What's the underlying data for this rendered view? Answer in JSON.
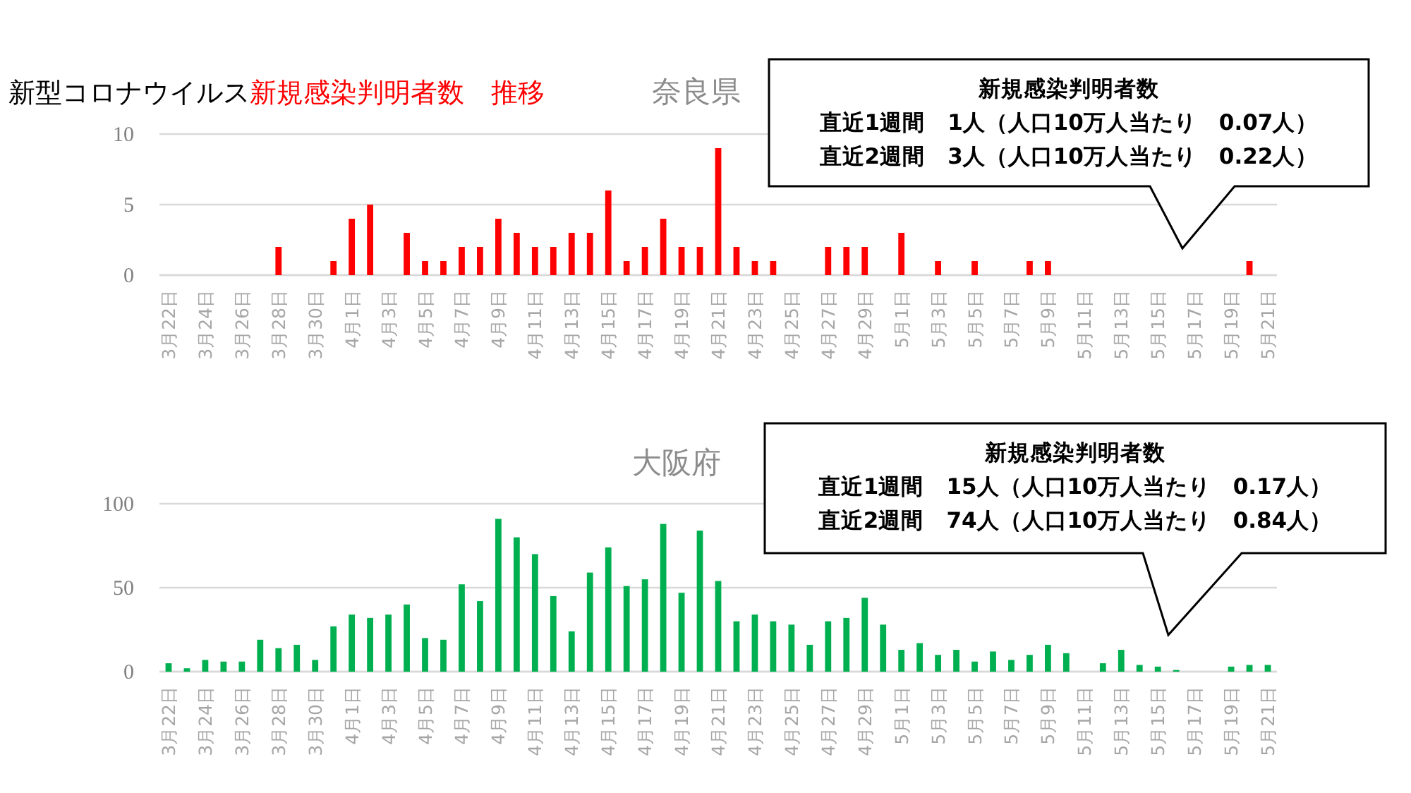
{
  "chart_data": [
    {
      "type": "bar",
      "title": "奈良県",
      "annotations": [
        "新型コロナウイルス",
        "新規感染判明者数　推移",
        "新規感染判明者数",
        "直近1週間　1人（人口10万人当たり　0.07人）",
        "直近2週間　3人（人口10万人当たり　0.22人）"
      ],
      "categories": [
        "3月22日",
        null,
        "3月24日",
        null,
        "3月26日",
        null,
        "3月28日",
        null,
        "3月30日",
        null,
        "4月1日",
        null,
        "4月3日",
        null,
        "4月5日",
        null,
        "4月7日",
        null,
        "4月9日",
        null,
        "4月11日",
        null,
        "4月13日",
        null,
        "4月15日",
        null,
        "4月17日",
        null,
        "4月19日",
        null,
        "4月21日",
        null,
        "4月23日",
        null,
        "4月25日",
        null,
        "4月27日",
        null,
        "4月29日",
        null,
        "5月1日",
        null,
        "5月3日",
        null,
        "5月5日",
        null,
        "5月7日",
        null,
        "5月9日",
        null,
        "5月11日",
        null,
        "5月13日",
        null,
        "5月15日",
        null,
        "5月17日",
        null,
        "5月19日",
        null,
        "5月21日"
      ],
      "values": [
        0,
        0,
        0,
        0,
        0,
        0,
        2,
        0,
        0,
        1,
        4,
        5,
        0,
        3,
        1,
        1,
        2,
        2,
        4,
        3,
        2,
        2,
        3,
        3,
        6,
        1,
        2,
        4,
        2,
        2,
        9,
        2,
        1,
        1,
        0,
        0,
        2,
        2,
        2,
        0,
        3,
        0,
        1,
        0,
        1,
        0,
        0,
        1,
        1,
        0,
        0,
        0,
        0,
        0,
        0,
        0,
        0,
        0,
        0,
        1,
        0
      ],
      "color": "#ff0000",
      "ylim": [
        0,
        10
      ],
      "yticks": [
        0,
        5,
        10
      ],
      "grid": "y"
    },
    {
      "type": "bar",
      "title": "大阪府",
      "annotations": [
        "新規感染判明者数",
        "直近1週間　15人（人口10万人当たり　0.17人）",
        "直近2週間　74人（人口10万人当たり　0.84人）"
      ],
      "categories": [
        "3月22日",
        null,
        "3月24日",
        null,
        "3月26日",
        null,
        "3月28日",
        null,
        "3月30日",
        null,
        "4月1日",
        null,
        "4月3日",
        null,
        "4月5日",
        null,
        "4月7日",
        null,
        "4月9日",
        null,
        "4月11日",
        null,
        "4月13日",
        null,
        "4月15日",
        null,
        "4月17日",
        null,
        "4月19日",
        null,
        "4月21日",
        null,
        "4月23日",
        null,
        "4月25日",
        null,
        "4月27日",
        null,
        "4月29日",
        null,
        "5月1日",
        null,
        "5月3日",
        null,
        "5月5日",
        null,
        "5月7日",
        null,
        "5月9日",
        null,
        "5月11日",
        null,
        "5月13日",
        null,
        "5月15日",
        null,
        "5月17日",
        null,
        "5月19日",
        null,
        "5月21日"
      ],
      "values": [
        5,
        2,
        7,
        6,
        6,
        19,
        14,
        16,
        7,
        27,
        34,
        32,
        34,
        40,
        20,
        19,
        52,
        42,
        91,
        80,
        70,
        45,
        24,
        59,
        74,
        51,
        55,
        88,
        47,
        84,
        54,
        30,
        34,
        30,
        28,
        16,
        30,
        32,
        44,
        28,
        13,
        17,
        10,
        13,
        6,
        12,
        7,
        10,
        16,
        11,
        0,
        5,
        13,
        4,
        3,
        1,
        0,
        0,
        3,
        4,
        4
      ],
      "color": "#00b050",
      "ylim": [
        0,
        100
      ],
      "yticks": [
        0,
        50,
        100
      ],
      "grid": "y"
    }
  ]
}
